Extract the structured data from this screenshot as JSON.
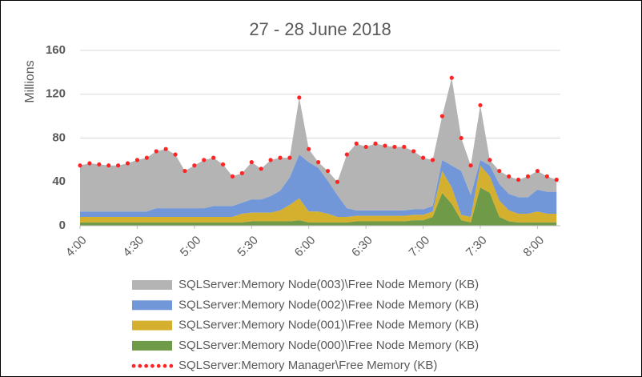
{
  "chart_data": {
    "type": "area",
    "stacked": true,
    "title": "27 - 28 June 2018",
    "y_label": "Millions",
    "x": [
      240,
      245,
      250,
      255,
      260,
      265,
      270,
      275,
      280,
      285,
      290,
      295,
      300,
      305,
      310,
      315,
      320,
      325,
      330,
      335,
      340,
      345,
      350,
      355,
      360,
      365,
      370,
      375,
      380,
      385,
      390,
      395,
      400,
      405,
      410,
      415,
      420,
      425,
      430,
      435,
      440,
      445,
      450,
      455,
      460,
      465,
      470,
      475,
      480,
      485,
      490
    ],
    "xlim": [
      240,
      492
    ],
    "xticks": [
      {
        "value": 240,
        "label": "4:00"
      },
      {
        "value": 270,
        "label": "4:30"
      },
      {
        "value": 300,
        "label": "5:00"
      },
      {
        "value": 330,
        "label": "5:30"
      },
      {
        "value": 360,
        "label": "6:00"
      },
      {
        "value": 390,
        "label": "6:30"
      },
      {
        "value": 420,
        "label": "7:00"
      },
      {
        "value": 450,
        "label": "7:30"
      },
      {
        "value": 480,
        "label": "8:00"
      }
    ],
    "ylim": [
      0,
      160
    ],
    "yticks": [
      0,
      40,
      80,
      120,
      160
    ],
    "grid": true,
    "series": [
      {
        "name": "SQLServer:Memory Node(003)\\Free Node Memory (KB)",
        "type": "area",
        "color": "#b4b4b4",
        "values": [
          42,
          44,
          43,
          42,
          42,
          44,
          47,
          49,
          52,
          54,
          49,
          34,
          39,
          44,
          44,
          38,
          27,
          27,
          34,
          28,
          33,
          30,
          18,
          52,
          12,
          5,
          9,
          12,
          49,
          61,
          58,
          61,
          59,
          58,
          58,
          53,
          47,
          42,
          40,
          80,
          30,
          27,
          50,
          5,
          12,
          16,
          16,
          19,
          17,
          14,
          11
        ]
      },
      {
        "name": "SQLServer:Memory Node(002)\\Free Node Memory (KB)",
        "type": "area",
        "color": "#7297d8",
        "values": [
          5,
          5,
          5,
          5,
          5,
          5,
          5,
          5,
          8,
          8,
          8,
          8,
          8,
          8,
          10,
          10,
          10,
          10,
          12,
          12,
          15,
          18,
          25,
          40,
          45,
          40,
          30,
          20,
          8,
          5,
          5,
          5,
          5,
          5,
          5,
          5,
          5,
          5,
          10,
          20,
          40,
          20,
          5,
          10,
          15,
          15,
          15,
          15,
          20,
          20,
          20
        ]
      },
      {
        "name": "SQLServer:Memory Node(001)\\Free Node Memory (KB)",
        "type": "area",
        "color": "#d4b02e",
        "values": [
          5,
          5,
          5,
          5,
          5,
          5,
          5,
          5,
          5,
          5,
          5,
          5,
          5,
          5,
          5,
          5,
          5,
          8,
          8,
          8,
          8,
          10,
          15,
          20,
          10,
          10,
          8,
          5,
          5,
          5,
          5,
          5,
          5,
          5,
          5,
          5,
          5,
          5,
          20,
          15,
          5,
          5,
          20,
          15,
          15,
          10,
          8,
          8,
          10,
          8,
          8
        ]
      },
      {
        "name": "SQLServer:Memory Node(000)\\Free Node Memory (KB)",
        "type": "area",
        "color": "#6f9a48",
        "values": [
          3,
          3,
          3,
          3,
          3,
          3,
          3,
          3,
          3,
          3,
          3,
          3,
          3,
          3,
          3,
          3,
          3,
          3,
          4,
          4,
          4,
          4,
          4,
          5,
          3,
          3,
          3,
          3,
          3,
          4,
          4,
          4,
          4,
          4,
          4,
          5,
          5,
          8,
          30,
          20,
          5,
          3,
          35,
          30,
          8,
          4,
          3,
          3,
          3,
          3,
          3
        ]
      },
      {
        "name": "SQLServer:Memory Manager\\Free Memory (KB)",
        "type": "line",
        "color": "#ff2525",
        "values": [
          55,
          57,
          56,
          55,
          55,
          57,
          60,
          62,
          68,
          70,
          65,
          50,
          55,
          60,
          62,
          56,
          45,
          48,
          58,
          52,
          60,
          62,
          62,
          117,
          70,
          58,
          50,
          40,
          65,
          75,
          72,
          75,
          73,
          72,
          72,
          68,
          62,
          60,
          100,
          135,
          80,
          55,
          110,
          60,
          50,
          45,
          42,
          45,
          50,
          45,
          42
        ]
      }
    ]
  }
}
